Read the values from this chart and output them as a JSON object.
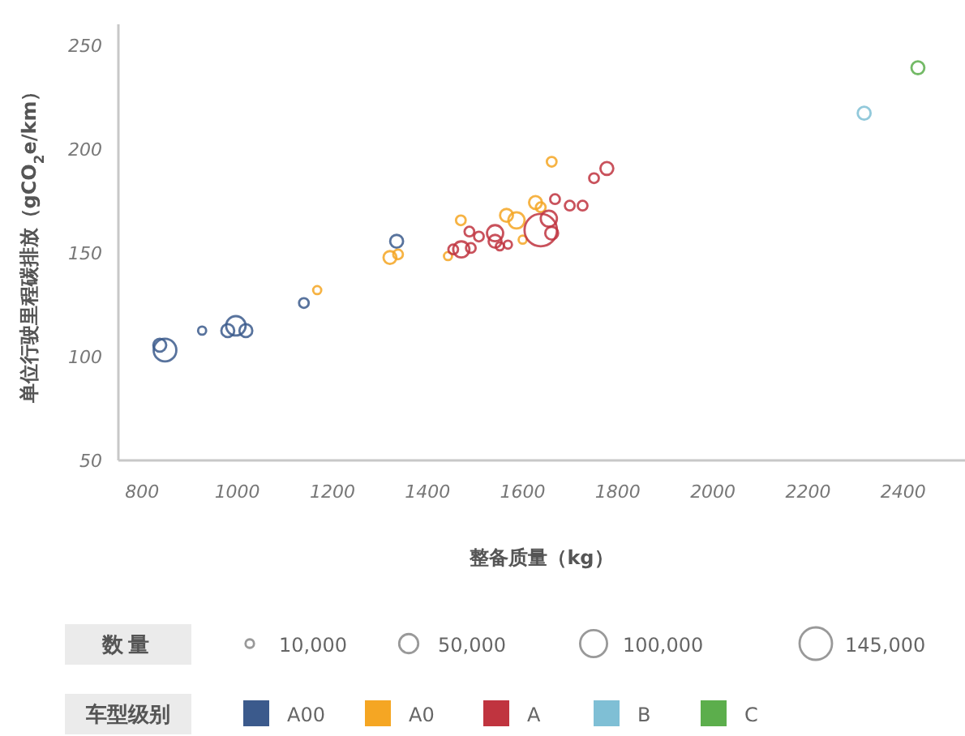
{
  "chart_data": {
    "type": "bubble",
    "xlabel": "整备质量（kg）",
    "ylabel": "单位行驶里程碳排放（gCO$_{2}$e/km）",
    "legend_title": "车型级别",
    "annotations": [
      "数量"
    ],
    "xlim": [
      750,
      2530
    ],
    "ylim": [
      50,
      260
    ],
    "xticks": [
      800,
      1000,
      1200,
      1400,
      1600,
      1800,
      2000,
      2200,
      2400
    ],
    "yticks": [
      50,
      100,
      150,
      200,
      250
    ],
    "size_legend": [
      {
        "value": 10000,
        "label": "10,000"
      },
      {
        "value": 50000,
        "label": "50,000"
      },
      {
        "value": 100000,
        "label": "100,000"
      },
      {
        "value": 145000,
        "label": "145,000"
      }
    ],
    "legend": "bottom",
    "marker": "circle",
    "series": [
      {
        "name": "A00",
        "color": "#3b5a8c",
        "x": [
          837,
          848,
          926,
          980,
          997,
          1018,
          1140,
          1335
        ],
        "values": [
          105.5,
          103.1,
          112.5,
          112.5,
          114.8,
          112.5,
          125.8,
          155.5
        ],
        "sizes": [
          23000,
          71000,
          9000,
          23000,
          52000,
          23000,
          13000,
          23000
        ]
      },
      {
        "name": "A0",
        "color": "#f5a623",
        "x": [
          1168,
          1321,
          1338,
          1443,
          1470,
          1661,
          1566,
          1587,
          1627,
          1638,
          1600
        ],
        "values": [
          132,
          147.7,
          149.2,
          148.4,
          165.6,
          193.8,
          168,
          165.6,
          174.2,
          171.9,
          156.3
        ],
        "sizes": [
          9000,
          23000,
          13000,
          9000,
          13000,
          13000,
          23000,
          36000,
          23000,
          13000,
          9000
        ]
      },
      {
        "name": "A",
        "color": "#c0343f",
        "x": [
          1454,
          1471,
          1491,
          1488,
          1508,
          1542,
          1542,
          1552,
          1569,
          1638,
          1661,
          1668,
          1699,
          1726,
          1750,
          1777,
          1655
        ],
        "values": [
          151.6,
          151.6,
          152.3,
          160.2,
          157.8,
          159.4,
          155.5,
          153.1,
          153.9,
          160.9,
          159.4,
          175.8,
          172.7,
          172.7,
          185.9,
          190.6,
          166.4
        ],
        "sizes": [
          13000,
          36000,
          13000,
          13000,
          13000,
          36000,
          23000,
          9000,
          9000,
          145000,
          23000,
          13000,
          13000,
          13000,
          13000,
          23000,
          36000
        ]
      },
      {
        "name": "B",
        "color": "#7fbfd5",
        "x": [
          2318
        ],
        "values": [
          217.2
        ],
        "sizes": [
          23000
        ]
      },
      {
        "name": "C",
        "color": "#5cae4c",
        "x": [
          2431
        ],
        "values": [
          239.1
        ],
        "sizes": [
          23000
        ]
      }
    ]
  }
}
